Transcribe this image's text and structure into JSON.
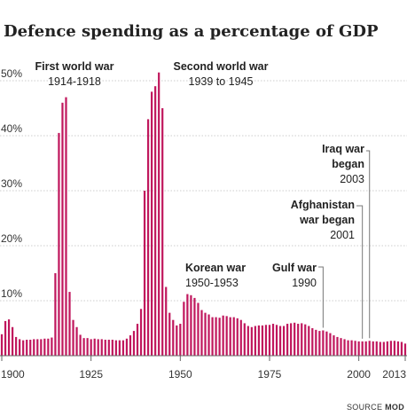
{
  "chart_data": {
    "type": "bar",
    "title": "Defence spending as a percentage of GDP",
    "x_tick_labels": [
      "1900",
      "1925",
      "1950",
      "1975",
      "2000",
      "2013"
    ],
    "x_ticks": [
      1900,
      1925,
      1950,
      1975,
      2000,
      2013
    ],
    "y_ticks": [
      {
        "value": 10,
        "label": "10%"
      },
      {
        "value": 20,
        "label": "20%"
      },
      {
        "value": 30,
        "label": "30%"
      },
      {
        "value": 40,
        "label": "40%"
      },
      {
        "value": 50,
        "label": "50%"
      }
    ],
    "ylim": [
      0,
      54
    ],
    "xlim": [
      1899.5,
      2013.5
    ],
    "grid": "horizontal dashed",
    "bar_color": "#c0175d",
    "x": [
      1900,
      1901,
      1902,
      1903,
      1904,
      1905,
      1906,
      1907,
      1908,
      1909,
      1910,
      1911,
      1912,
      1913,
      1914,
      1915,
      1916,
      1917,
      1918,
      1919,
      1920,
      1921,
      1922,
      1923,
      1924,
      1925,
      1926,
      1927,
      1928,
      1929,
      1930,
      1931,
      1932,
      1933,
      1934,
      1935,
      1936,
      1937,
      1938,
      1939,
      1940,
      1941,
      1942,
      1943,
      1944,
      1945,
      1946,
      1947,
      1948,
      1949,
      1950,
      1951,
      1952,
      1953,
      1954,
      1955,
      1956,
      1957,
      1958,
      1959,
      1960,
      1961,
      1962,
      1963,
      1964,
      1965,
      1966,
      1967,
      1968,
      1969,
      1970,
      1971,
      1972,
      1973,
      1974,
      1975,
      1976,
      1977,
      1978,
      1979,
      1980,
      1981,
      1982,
      1983,
      1984,
      1985,
      1986,
      1987,
      1988,
      1989,
      1990,
      1991,
      1992,
      1993,
      1994,
      1995,
      1996,
      1997,
      1998,
      1999,
      2000,
      2001,
      2002,
      2003,
      2004,
      2005,
      2006,
      2007,
      2008,
      2009,
      2010,
      2011,
      2012,
      2013
    ],
    "values": [
      3.9,
      6.3,
      6.6,
      5.2,
      3.4,
      3.0,
      2.8,
      2.9,
      2.9,
      3.0,
      3.0,
      3.0,
      3.1,
      3.1,
      3.3,
      15,
      40.5,
      46,
      47,
      11.6,
      6.5,
      5.2,
      3.8,
      3.2,
      3.2,
      3.0,
      3.1,
      3.0,
      3.0,
      2.9,
      2.9,
      2.9,
      2.8,
      2.8,
      2.8,
      3.1,
      3.7,
      4.5,
      5.8,
      8.5,
      30,
      43,
      48,
      49,
      51.5,
      45,
      12.5,
      7.8,
      6.5,
      5.5,
      5.8,
      9.8,
      11.2,
      11.0,
      10.5,
      9.6,
      8.3,
      7.8,
      7.5,
      7.0,
      7.0,
      6.9,
      7.3,
      7.2,
      7.0,
      7.0,
      6.8,
      6.5,
      5.9,
      5.4,
      5.2,
      5.4,
      5.5,
      5.5,
      5.6,
      5.6,
      5.8,
      5.6,
      5.4,
      5.4,
      5.8,
      5.9,
      6.0,
      5.8,
      5.9,
      5.7,
      5.4,
      5.0,
      4.7,
      4.5,
      4.6,
      4.4,
      4.1,
      3.7,
      3.4,
      3.2,
      3.0,
      2.8,
      2.8,
      2.7,
      2.6,
      2.6,
      2.6,
      2.7,
      2.6,
      2.6,
      2.5,
      2.5,
      2.6,
      2.7,
      2.7,
      2.6,
      2.5,
      2.2
    ],
    "annotations": [
      {
        "id": "ww1",
        "title": "First world war",
        "subtitle": "1914-1918"
      },
      {
        "id": "ww2",
        "title": "Second world war",
        "subtitle": "1939 to 1945"
      },
      {
        "id": "korea",
        "title": "Korean war",
        "subtitle": "1950-1953"
      },
      {
        "id": "gulf",
        "title": "Gulf war",
        "subtitle": "1990",
        "year": 1990
      },
      {
        "id": "afghan",
        "title_lines": [
          "Afghanistan",
          "war began"
        ],
        "subtitle": "2001",
        "year": 2001
      },
      {
        "id": "iraq",
        "title_lines": [
          "Iraq war",
          "began"
        ],
        "subtitle": "2003",
        "year": 2003
      }
    ],
    "source_label": "SOURCE",
    "source_value": "MOD"
  }
}
